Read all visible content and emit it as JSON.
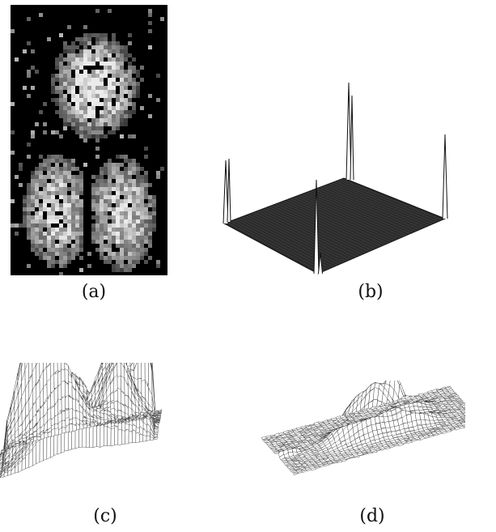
{
  "figure": {
    "panels": [
      {
        "id": "a",
        "caption": "(a)",
        "kind": "grayscale-image"
      },
      {
        "id": "b",
        "caption": "(b)",
        "kind": "3d-surface-mesh"
      },
      {
        "id": "c",
        "caption": "(c)",
        "kind": "3d-surface-mesh"
      },
      {
        "id": "d",
        "caption": "(d)",
        "kind": "3d-surface-mesh"
      }
    ]
  },
  "colors": {
    "background": "#ffffff",
    "mesh_line": "#1a1a1a",
    "image_dark": "#000000",
    "image_bright": "#e6e6e6"
  }
}
